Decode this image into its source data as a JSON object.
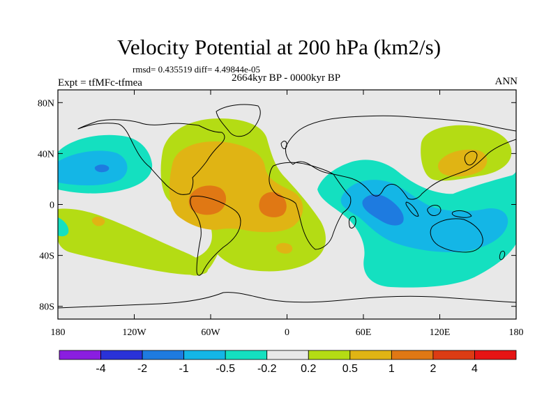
{
  "chart_data": {
    "type": "heatmap",
    "title": "Velocity Potential at 200 hPa (km2/s)",
    "stats_text": "rmsd= 0.435519 diff= 4.49844e-05",
    "left_subtitle": "Expt = tfMFc-tfmea",
    "center_subtitle": "2664kyr BP - 0000kyr BP",
    "right_subtitle": "ANN",
    "x_range": [
      -180,
      180
    ],
    "y_range": [
      -90,
      90
    ],
    "x_ticks": [
      {
        "value": -180,
        "label": "180"
      },
      {
        "value": -120,
        "label": "120W"
      },
      {
        "value": -60,
        "label": "60W"
      },
      {
        "value": 0,
        "label": "0"
      },
      {
        "value": 60,
        "label": "60E"
      },
      {
        "value": 120,
        "label": "120E"
      },
      {
        "value": 180,
        "label": "180"
      }
    ],
    "y_ticks": [
      {
        "value": 80,
        "label": "80N"
      },
      {
        "value": 40,
        "label": "40N"
      },
      {
        "value": 0,
        "label": "0"
      },
      {
        "value": -40,
        "label": "40S"
      },
      {
        "value": -80,
        "label": "80S"
      }
    ],
    "colorbar": {
      "levels": [
        "-4",
        "-2",
        "-1",
        "-0.5",
        "-0.2",
        "0.2",
        "0.5",
        "1",
        "2",
        "4"
      ],
      "colors": [
        "#8a1ee0",
        "#2a32d8",
        "#1e7be0",
        "#14b6e6",
        "#14e0c0",
        "#e8e8e8",
        "#b4dc14",
        "#e0b414",
        "#e07814",
        "#dc3c14",
        "#e61414"
      ]
    }
  }
}
